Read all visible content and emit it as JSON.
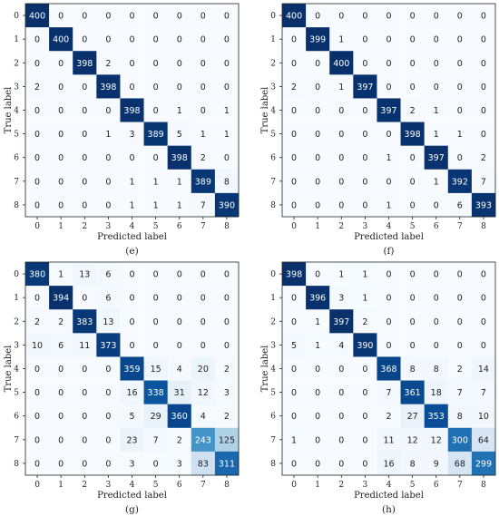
{
  "chart_data": [
    {
      "type": "heatmap",
      "panel_label": "(e)",
      "xlabel": "Predicted label",
      "ylabel": "True label",
      "x_ticks": [
        "0",
        "1",
        "2",
        "3",
        "4",
        "5",
        "6",
        "7",
        "8"
      ],
      "y_ticks": [
        "0",
        "1",
        "2",
        "3",
        "4",
        "5",
        "6",
        "7",
        "8"
      ],
      "vmax": 400,
      "colormap": "Blues",
      "matrix": [
        [
          400,
          0,
          0,
          0,
          0,
          0,
          0,
          0,
          0
        ],
        [
          0,
          400,
          0,
          0,
          0,
          0,
          0,
          0,
          0
        ],
        [
          0,
          0,
          398,
          2,
          0,
          0,
          0,
          0,
          0
        ],
        [
          2,
          0,
          0,
          398,
          0,
          0,
          0,
          0,
          0
        ],
        [
          0,
          0,
          0,
          0,
          398,
          0,
          1,
          0,
          1
        ],
        [
          0,
          0,
          0,
          1,
          3,
          389,
          5,
          1,
          1
        ],
        [
          0,
          0,
          0,
          0,
          0,
          0,
          398,
          2,
          0
        ],
        [
          0,
          0,
          0,
          0,
          1,
          1,
          1,
          389,
          8
        ],
        [
          0,
          0,
          0,
          0,
          1,
          1,
          1,
          7,
          390
        ]
      ]
    },
    {
      "type": "heatmap",
      "panel_label": "(f)",
      "xlabel": "Predicted label",
      "ylabel": "True label",
      "x_ticks": [
        "0",
        "1",
        "2",
        "3",
        "4",
        "5",
        "6",
        "7",
        "8"
      ],
      "y_ticks": [
        "0",
        "1",
        "2",
        "3",
        "4",
        "5",
        "6",
        "7",
        "8"
      ],
      "vmax": 400,
      "colormap": "Blues",
      "matrix": [
        [
          400,
          0,
          0,
          0,
          0,
          0,
          0,
          0,
          0
        ],
        [
          0,
          399,
          1,
          0,
          0,
          0,
          0,
          0,
          0
        ],
        [
          0,
          0,
          400,
          0,
          0,
          0,
          0,
          0,
          0
        ],
        [
          2,
          0,
          1,
          397,
          0,
          0,
          0,
          0,
          0
        ],
        [
          0,
          0,
          0,
          0,
          397,
          2,
          1,
          0,
          0
        ],
        [
          0,
          0,
          0,
          0,
          0,
          398,
          1,
          1,
          0
        ],
        [
          0,
          0,
          0,
          0,
          1,
          0,
          397,
          0,
          2
        ],
        [
          0,
          0,
          0,
          0,
          0,
          0,
          1,
          392,
          7
        ],
        [
          0,
          0,
          0,
          0,
          1,
          0,
          0,
          6,
          393
        ]
      ]
    },
    {
      "type": "heatmap",
      "panel_label": "(g)",
      "xlabel": "Predicted label",
      "ylabel": "True label",
      "x_ticks": [
        "0",
        "1",
        "2",
        "3",
        "4",
        "5",
        "6",
        "7",
        "8"
      ],
      "y_ticks": [
        "0",
        "1",
        "2",
        "3",
        "4",
        "5",
        "6",
        "7",
        "8"
      ],
      "vmax": 394,
      "colormap": "Blues",
      "matrix": [
        [
          380,
          1,
          13,
          6,
          0,
          0,
          0,
          0,
          0
        ],
        [
          0,
          394,
          0,
          6,
          0,
          0,
          0,
          0,
          0
        ],
        [
          2,
          2,
          383,
          13,
          0,
          0,
          0,
          0,
          0
        ],
        [
          10,
          6,
          11,
          373,
          0,
          0,
          0,
          0,
          0
        ],
        [
          0,
          0,
          0,
          0,
          359,
          15,
          4,
          20,
          2
        ],
        [
          0,
          0,
          0,
          0,
          16,
          338,
          31,
          12,
          3
        ],
        [
          0,
          0,
          0,
          0,
          5,
          29,
          360,
          4,
          2
        ],
        [
          0,
          0,
          0,
          0,
          23,
          7,
          2,
          243,
          125
        ],
        [
          0,
          0,
          0,
          0,
          3,
          0,
          3,
          83,
          311
        ]
      ]
    },
    {
      "type": "heatmap",
      "panel_label": "(h)",
      "xlabel": "Predicted label",
      "ylabel": "True label",
      "x_ticks": [
        "0",
        "1",
        "2",
        "3",
        "4",
        "5",
        "6",
        "7",
        "8"
      ],
      "y_ticks": [
        "0",
        "1",
        "2",
        "3",
        "4",
        "5",
        "6",
        "7",
        "8"
      ],
      "vmax": 398,
      "colormap": "Blues",
      "matrix": [
        [
          398,
          0,
          1,
          1,
          0,
          0,
          0,
          0,
          0
        ],
        [
          0,
          396,
          3,
          1,
          0,
          0,
          0,
          0,
          0
        ],
        [
          0,
          1,
          397,
          2,
          0,
          0,
          0,
          0,
          0
        ],
        [
          5,
          1,
          4,
          390,
          0,
          0,
          0,
          0,
          0
        ],
        [
          0,
          0,
          0,
          0,
          368,
          8,
          8,
          2,
          14
        ],
        [
          0,
          0,
          0,
          0,
          7,
          361,
          18,
          7,
          7
        ],
        [
          0,
          0,
          0,
          0,
          2,
          27,
          353,
          8,
          10
        ],
        [
          1,
          0,
          0,
          0,
          11,
          12,
          12,
          300,
          64
        ],
        [
          0,
          0,
          0,
          0,
          16,
          8,
          9,
          68,
          299
        ]
      ]
    }
  ]
}
